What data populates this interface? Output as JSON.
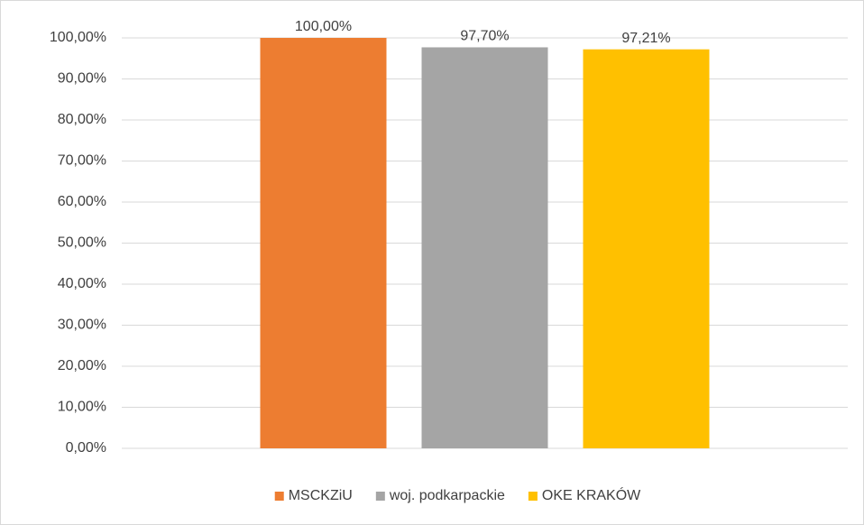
{
  "chart_data": {
    "type": "bar",
    "categories": [
      null
    ],
    "series": [
      {
        "name": "MSCKZiU",
        "color": "#ed7d31",
        "values": [
          100
        ],
        "value_labels": [
          "100,00%"
        ]
      },
      {
        "name": "woj. podkarpackie",
        "color": "#a5a5a5",
        "values": [
          97.7
        ],
        "value_labels": [
          "97,70%"
        ]
      },
      {
        "name": "OKE KRAKÓW",
        "color": "#ffc000",
        "values": [
          97.21
        ],
        "value_labels": [
          "97,21%"
        ]
      }
    ],
    "ylim": [
      0,
      100
    ],
    "yticks": [
      {
        "value": 0,
        "label": "0,00%"
      },
      {
        "value": 10,
        "label": "10,00%"
      },
      {
        "value": 20,
        "label": "20,00%"
      },
      {
        "value": 30,
        "label": "30,00%"
      },
      {
        "value": 40,
        "label": "40,00%"
      },
      {
        "value": 50,
        "label": "50,00%"
      },
      {
        "value": 60,
        "label": "60,00%"
      },
      {
        "value": 70,
        "label": "70,00%"
      },
      {
        "value": 80,
        "label": "80,00%"
      },
      {
        "value": 90,
        "label": "90,00%"
      },
      {
        "value": 100,
        "label": "100,00%"
      }
    ],
    "grid": true,
    "legend": "bottom"
  }
}
